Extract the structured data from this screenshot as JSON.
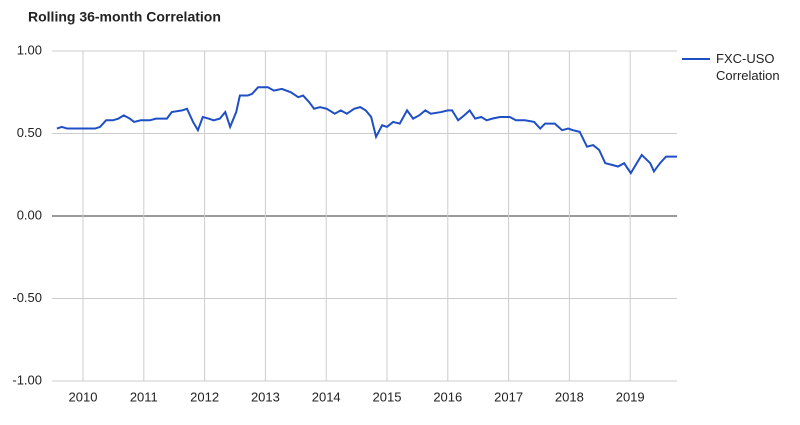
{
  "chart_data": {
    "type": "line",
    "title": "Rolling 36-month Correlation",
    "x": [
      2009.57,
      2009.65,
      2009.74,
      2009.82,
      2009.9,
      2010.0,
      2010.2,
      2010.28,
      2010.38,
      2010.49,
      2010.58,
      2010.67,
      2010.77,
      2010.84,
      2010.95,
      2011.1,
      2011.2,
      2011.38,
      2011.46,
      2011.63,
      2011.71,
      2011.81,
      2011.89,
      2011.97,
      2012.07,
      2012.15,
      2012.25,
      2012.34,
      2012.42,
      2012.52,
      2012.58,
      2012.71,
      2012.78,
      2012.88,
      2012.96,
      2013.04,
      2013.14,
      2013.27,
      2013.42,
      2013.54,
      2013.62,
      2013.72,
      2013.8,
      2013.9,
      2014.01,
      2014.14,
      2014.24,
      2014.34,
      2014.46,
      2014.56,
      2014.65,
      2014.74,
      2014.82,
      2014.92,
      2015.0,
      2015.1,
      2015.21,
      2015.33,
      2015.43,
      2015.53,
      2015.63,
      2015.72,
      2015.89,
      2016.0,
      2016.07,
      2016.17,
      2016.27,
      2016.36,
      2016.45,
      2016.55,
      2016.64,
      2016.73,
      2016.86,
      2017.02,
      2017.12,
      2017.27,
      2017.42,
      2017.52,
      2017.6,
      2017.76,
      2017.88,
      2017.98,
      2018.06,
      2018.17,
      2018.29,
      2018.39,
      2018.49,
      2018.59,
      2018.7,
      2018.8,
      2018.9,
      2019.01,
      2019.19,
      2019.33,
      2019.39,
      2019.49,
      2019.59,
      2019.67,
      2019.77
    ],
    "series": [
      {
        "name": "FXC-USO Correlation",
        "color": "#1f4fc4",
        "values": [
          0.53,
          0.54,
          0.53,
          0.53,
          0.53,
          0.53,
          0.53,
          0.54,
          0.58,
          0.58,
          0.59,
          0.61,
          0.59,
          0.57,
          0.58,
          0.58,
          0.59,
          0.59,
          0.63,
          0.64,
          0.65,
          0.57,
          0.52,
          0.6,
          0.59,
          0.58,
          0.59,
          0.63,
          0.54,
          0.63,
          0.73,
          0.73,
          0.74,
          0.78,
          0.78,
          0.78,
          0.76,
          0.77,
          0.75,
          0.72,
          0.73,
          0.69,
          0.65,
          0.66,
          0.65,
          0.62,
          0.64,
          0.62,
          0.65,
          0.66,
          0.64,
          0.6,
          0.48,
          0.55,
          0.54,
          0.57,
          0.56,
          0.64,
          0.59,
          0.61,
          0.64,
          0.62,
          0.63,
          0.64,
          0.64,
          0.58,
          0.61,
          0.64,
          0.59,
          0.6,
          0.58,
          0.59,
          0.6,
          0.6,
          0.58,
          0.58,
          0.57,
          0.53,
          0.56,
          0.56,
          0.52,
          0.53,
          0.52,
          0.51,
          0.42,
          0.43,
          0.4,
          0.32,
          0.31,
          0.3,
          0.32,
          0.26,
          0.37,
          0.32,
          0.27,
          0.32,
          0.36,
          0.36,
          0.36
        ]
      }
    ],
    "xlim": [
      2009.49,
      2019.77
    ],
    "xticks": [
      2010,
      2011,
      2012,
      2013,
      2014,
      2015,
      2016,
      2017,
      2018,
      2019
    ],
    "ylim": [
      -1,
      1
    ],
    "yticks": [
      {
        "value": 1,
        "label": "1.00"
      },
      {
        "value": 0.5,
        "label": "0.50"
      },
      {
        "value": 0,
        "label": "0.00"
      },
      {
        "value": -0.5,
        "label": "-0.50"
      },
      {
        "value": -1,
        "label": "-1.00"
      }
    ],
    "grid": true,
    "legend": "right"
  }
}
